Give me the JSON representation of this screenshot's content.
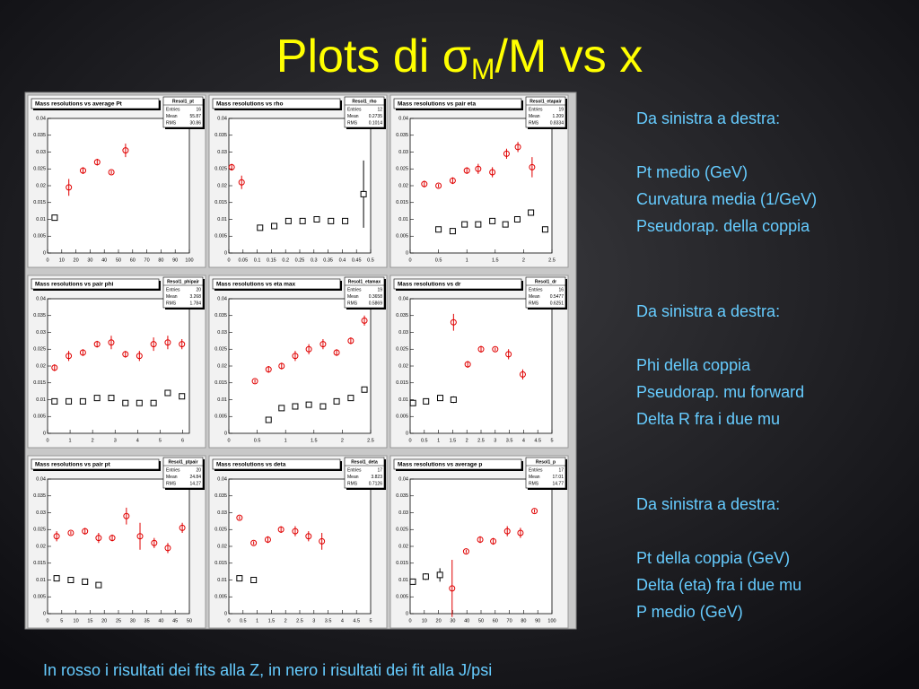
{
  "slide": {
    "title_prefix": "Plots di ",
    "title_sigma": "σ",
    "title_sub": "M",
    "title_suffix": "/M vs x",
    "notes": [
      {
        "header": "Da sinistra a destra:",
        "lines": [
          " Pt medio (GeV)",
          "Curvatura media (1/GeV)",
          "Pseudorap. della coppia"
        ]
      },
      {
        "header": "Da sinistra a destra:",
        "lines": [
          "Phi della coppia",
          "Pseudorap. mu forward",
          "Delta R fra i due mu"
        ]
      },
      {
        "header": "Da sinistra a destra:",
        "lines": [
          "Pt della coppia (GeV)",
          "Delta (eta) fra i due mu",
          "P medio (GeV)"
        ]
      }
    ],
    "footer": "In rosso i risultati dei fits alla Z, in nero i risultati dei fit alla J/psi"
  },
  "chart_data": [
    {
      "type": "scatter",
      "title": "Mass resolutions vs average Pt",
      "stats_name": "Resol1_pt",
      "stats": [
        {
          "label": "Entries",
          "value": "16"
        },
        {
          "label": "Mean",
          "value": "55.87"
        },
        {
          "label": "RMS",
          "value": "30.86"
        }
      ],
      "xlim": [
        0,
        100
      ],
      "xticks": [
        0,
        10,
        20,
        30,
        40,
        50,
        60,
        70,
        80,
        90,
        100
      ],
      "ylim": [
        0,
        0.04
      ],
      "yticks": [
        0,
        0.005,
        0.01,
        0.015,
        0.02,
        0.025,
        0.03,
        0.035,
        0.04
      ],
      "series": [
        {
          "color": "#e00000",
          "x": [
            15,
            25,
            35,
            45,
            55
          ],
          "values": [
            0.0195,
            0.0245,
            0.027,
            0.024,
            0.0305
          ],
          "errors": [
            0.0025,
            0.001,
            0.001,
            0.0005,
            0.002
          ]
        },
        {
          "color": "#000000",
          "x": [
            5
          ],
          "values": [
            0.0105
          ],
          "errors": [
            0.0005
          ]
        }
      ]
    },
    {
      "type": "scatter",
      "title": "Mass resolutions vs rho",
      "stats_name": "Resol1_rho",
      "stats": [
        {
          "label": "Entries",
          "value": "12"
        },
        {
          "label": "Mean",
          "value": "0.2735"
        },
        {
          "label": "RMS",
          "value": "0.1014"
        }
      ],
      "xlim": [
        0,
        0.5
      ],
      "xticks": [
        0,
        0.05,
        0.1,
        0.15,
        0.2,
        0.25,
        0.3,
        0.35,
        0.4,
        0.45,
        0.5
      ],
      "ylim": [
        0,
        0.04
      ],
      "yticks": [
        0,
        0.005,
        0.01,
        0.015,
        0.02,
        0.025,
        0.03,
        0.035,
        0.04
      ],
      "series": [
        {
          "color": "#e00000",
          "x": [
            0.01,
            0.045
          ],
          "values": [
            0.0255,
            0.021
          ],
          "errors": [
            0.001,
            0.002
          ]
        },
        {
          "color": "#000000",
          "x": [
            0.11,
            0.16,
            0.21,
            0.26,
            0.31,
            0.36,
            0.41,
            0.475
          ],
          "values": [
            0.0075,
            0.008,
            0.0095,
            0.0095,
            0.01,
            0.0095,
            0.0095,
            0.0175
          ],
          "errors": [
            0.0005,
            0.0005,
            0.0005,
            0.0005,
            0.0005,
            0.0005,
            0.0005,
            0.01
          ]
        }
      ]
    },
    {
      "type": "scatter",
      "title": "Mass resolutions vs pair eta",
      "stats_name": "Resol1_etapair",
      "stats": [
        {
          "label": "Entries",
          "value": "19"
        },
        {
          "label": "Mean",
          "value": "1.209"
        },
        {
          "label": "RMS",
          "value": "0.8334"
        }
      ],
      "xlim": [
        0,
        2.5
      ],
      "xticks": [
        0,
        0.5,
        1,
        1.5,
        2,
        2.5
      ],
      "ylim": [
        0,
        0.04
      ],
      "yticks": [
        0,
        0.005,
        0.01,
        0.015,
        0.02,
        0.025,
        0.03,
        0.035,
        0.04
      ],
      "series": [
        {
          "color": "#e00000",
          "x": [
            0.25,
            0.5,
            0.75,
            1,
            1.2,
            1.45,
            1.7,
            1.9,
            2.15
          ],
          "values": [
            0.0205,
            0.02,
            0.0215,
            0.0245,
            0.025,
            0.024,
            0.0295,
            0.0315,
            0.0255
          ],
          "errors": [
            0.001,
            0.0005,
            0.001,
            0.001,
            0.0015,
            0.0015,
            0.0015,
            0.0015,
            0.003
          ]
        },
        {
          "color": "#000000",
          "x": [
            0.5,
            0.75,
            0.96,
            1.2,
            1.45,
            1.68,
            1.89,
            2.13,
            2.38
          ],
          "values": [
            0.007,
            0.0065,
            0.0085,
            0.0085,
            0.0095,
            0.0085,
            0.01,
            0.012,
            0.007
          ],
          "errors": [
            0.0005,
            0.0005,
            0.0005,
            0.0005,
            0.0005,
            0.0005,
            0.0005,
            0.0005,
            0.0005
          ]
        }
      ]
    },
    {
      "type": "scatter",
      "title": "Mass resolutions vs pair phi",
      "stats_name": "Resol1_phipair",
      "stats": [
        {
          "label": "Entries",
          "value": "20"
        },
        {
          "label": "Mean",
          "value": "3.268"
        },
        {
          "label": "RMS",
          "value": "1.784"
        }
      ],
      "xlim": [
        0,
        6.3
      ],
      "xticks": [
        0,
        1,
        2,
        3,
        4,
        5,
        6
      ],
      "ylim": [
        0,
        0.04
      ],
      "yticks": [
        0,
        0.005,
        0.01,
        0.015,
        0.02,
        0.025,
        0.03,
        0.035,
        0.04
      ],
      "series": [
        {
          "color": "#e00000",
          "x": [
            0.31,
            0.94,
            1.57,
            2.2,
            2.83,
            3.46,
            4.08,
            4.71,
            5.34,
            5.97
          ],
          "values": [
            0.0195,
            0.023,
            0.024,
            0.0265,
            0.027,
            0.0235,
            0.023,
            0.0265,
            0.027,
            0.0265
          ],
          "errors": [
            0.001,
            0.0015,
            0.001,
            0.001,
            0.002,
            0.001,
            0.0015,
            0.002,
            0.002,
            0.0015
          ]
        },
        {
          "color": "#000000",
          "x": [
            0.31,
            0.94,
            1.57,
            2.2,
            2.83,
            3.46,
            4.08,
            4.71,
            5.34,
            5.97
          ],
          "values": [
            0.0095,
            0.0095,
            0.0095,
            0.0105,
            0.0105,
            0.009,
            0.009,
            0.009,
            0.012,
            0.011
          ],
          "errors": [
            0.0005,
            0.0005,
            0.0005,
            0.0005,
            0.0005,
            0.0005,
            0.0005,
            0.0005,
            0.0005,
            0.0005
          ]
        }
      ]
    },
    {
      "type": "scatter",
      "title": "Mass resolutions vs eta max",
      "stats_name": "Resol1_etamax",
      "stats": [
        {
          "label": "Entries",
          "value": "19"
        },
        {
          "label": "Mean",
          "value": "0.3658"
        },
        {
          "label": "RMS",
          "value": "0.5869"
        }
      ],
      "xlim": [
        0,
        2.5
      ],
      "xticks": [
        0,
        0.5,
        1,
        1.5,
        2,
        2.5
      ],
      "ylim": [
        0,
        0.04
      ],
      "yticks": [
        0,
        0.005,
        0.01,
        0.015,
        0.02,
        0.025,
        0.03,
        0.035,
        0.04
      ],
      "series": [
        {
          "color": "#e00000",
          "x": [
            0.46,
            0.7,
            0.93,
            1.17,
            1.41,
            1.66,
            1.9,
            2.15,
            2.39
          ],
          "values": [
            0.0155,
            0.019,
            0.02,
            0.023,
            0.025,
            0.0265,
            0.024,
            0.0275,
            0.0335
          ],
          "errors": [
            0.0005,
            0.001,
            0.001,
            0.0015,
            0.0015,
            0.0015,
            0.001,
            0.001,
            0.0015
          ]
        },
        {
          "color": "#000000",
          "x": [
            0.7,
            0.93,
            1.17,
            1.41,
            1.66,
            1.9,
            2.15,
            2.39
          ],
          "values": [
            0.004,
            0.0075,
            0.008,
            0.0085,
            0.008,
            0.0095,
            0.0105,
            0.013
          ],
          "errors": [
            0.0005,
            0.0005,
            0.0005,
            0.0005,
            0.0005,
            0.0005,
            0.0005,
            0.0005
          ]
        }
      ]
    },
    {
      "type": "scatter",
      "title": "Mass resolutions vs dr",
      "stats_name": "Resol1_dr",
      "stats": [
        {
          "label": "Entries",
          "value": "16"
        },
        {
          "label": "Mean",
          "value": "0.5477"
        },
        {
          "label": "RMS",
          "value": "0.6251"
        }
      ],
      "xlim": [
        0,
        5
      ],
      "xticks": [
        0,
        0.5,
        1,
        1.5,
        2,
        2.5,
        3,
        3.5,
        4,
        4.5,
        5
      ],
      "ylim": [
        0,
        0.04
      ],
      "yticks": [
        0,
        0.005,
        0.01,
        0.015,
        0.02,
        0.025,
        0.03,
        0.035,
        0.04
      ],
      "series": [
        {
          "color": "#e00000",
          "x": [
            1.53,
            2.03,
            2.5,
            3,
            3.47,
            3.97
          ],
          "values": [
            0.033,
            0.0205,
            0.025,
            0.025,
            0.0235,
            0.0175
          ],
          "errors": [
            0.0025,
            0.001,
            0.001,
            0.0005,
            0.0015,
            0.0015
          ]
        },
        {
          "color": "#000000",
          "x": [
            0.1,
            0.56,
            1.06,
            1.53
          ],
          "values": [
            0.009,
            0.0095,
            0.0105,
            0.01
          ],
          "errors": [
            0.0005,
            0.0005,
            0.0005,
            0.001
          ]
        }
      ]
    },
    {
      "type": "scatter",
      "title": "Mass resolutions vs pair pt",
      "stats_name": "Resol1_ptpair",
      "stats": [
        {
          "label": "Entries",
          "value": "20"
        },
        {
          "label": "Mean",
          "value": "24.84"
        },
        {
          "label": "RMS",
          "value": "14.27"
        }
      ],
      "xlim": [
        0,
        50
      ],
      "xticks": [
        0,
        5,
        10,
        15,
        20,
        25,
        30,
        35,
        40,
        45,
        50
      ],
      "ylim": [
        0,
        0.04
      ],
      "yticks": [
        0,
        0.005,
        0.01,
        0.015,
        0.02,
        0.025,
        0.03,
        0.035,
        0.04
      ],
      "series": [
        {
          "color": "#e00000",
          "x": [
            3.2,
            8.2,
            13.2,
            18,
            22.8,
            27.8,
            32.6,
            37.6,
            42.4,
            47.5
          ],
          "values": [
            0.023,
            0.024,
            0.0245,
            0.0225,
            0.0225,
            0.029,
            0.023,
            0.021,
            0.0195,
            0.0255
          ],
          "errors": [
            0.0015,
            0.0005,
            0.001,
            0.0015,
            0.001,
            0.0025,
            0.004,
            0.0015,
            0.0015,
            0.0015
          ]
        },
        {
          "color": "#000000",
          "x": [
            3.2,
            8.2,
            13.2,
            18
          ],
          "values": [
            0.0105,
            0.01,
            0.0095,
            0.0085
          ],
          "errors": [
            0.0005,
            0.0005,
            0.0005,
            0.0005
          ]
        }
      ]
    },
    {
      "type": "scatter",
      "title": "Mass resolutions vs deta",
      "stats_name": "Resol1_deta",
      "stats": [
        {
          "label": "Entries",
          "value": "17"
        },
        {
          "label": "Mean",
          "value": "3.823"
        },
        {
          "label": "RMS",
          "value": "0.7126"
        }
      ],
      "xlim": [
        0,
        5
      ],
      "xticks": [
        0,
        0.5,
        1,
        1.5,
        2,
        2.5,
        3,
        3.5,
        4,
        4.5,
        5
      ],
      "ylim": [
        0,
        0.04
      ],
      "yticks": [
        0,
        0.005,
        0.01,
        0.015,
        0.02,
        0.025,
        0.03,
        0.035,
        0.04
      ],
      "series": [
        {
          "color": "#e00000",
          "x": [
            0.375,
            0.875,
            1.375,
            1.84,
            2.34,
            2.81,
            3.28
          ],
          "values": [
            0.0285,
            0.021,
            0.022,
            0.025,
            0.0245,
            0.023,
            0.0215
          ],
          "errors": [
            0.0005,
            0.0005,
            0.001,
            0.001,
            0.0015,
            0.0015,
            0.0025
          ]
        },
        {
          "color": "#000000",
          "x": [
            0.375,
            0.875
          ],
          "values": [
            0.0105,
            0.01
          ],
          "errors": [
            0.0005,
            0.0005
          ]
        }
      ]
    },
    {
      "type": "scatter",
      "title": "Mass resolutions vs average p",
      "stats_name": "Resol1_p",
      "stats": [
        {
          "label": "Entries",
          "value": "17"
        },
        {
          "label": "Mean",
          "value": "17.01"
        },
        {
          "label": "RMS",
          "value": "14.77"
        }
      ],
      "xlim": [
        0,
        100
      ],
      "xticks": [
        0,
        10,
        20,
        30,
        40,
        50,
        60,
        70,
        80,
        90,
        100
      ],
      "ylim": [
        0,
        0.04
      ],
      "yticks": [
        0,
        0.005,
        0.01,
        0.015,
        0.02,
        0.025,
        0.03,
        0.035,
        0.04
      ],
      "series": [
        {
          "color": "#e00000",
          "x": [
            29.6,
            39.5,
            49.4,
            58.6,
            68.5,
            77.8,
            87.7
          ],
          "values": [
            0.0075,
            0.0185,
            0.022,
            0.0215,
            0.0245,
            0.024,
            0.0305
          ],
          "errors": [
            0.0085,
            0.0005,
            0.001,
            0.001,
            0.0015,
            0.0015,
            0.0005
          ]
        },
        {
          "color": "#000000",
          "x": [
            1.9,
            11,
            21
          ],
          "values": [
            0.0095,
            0.011,
            0.0115
          ],
          "errors": [
            0.0005,
            0.001,
            0.002
          ]
        }
      ]
    }
  ]
}
